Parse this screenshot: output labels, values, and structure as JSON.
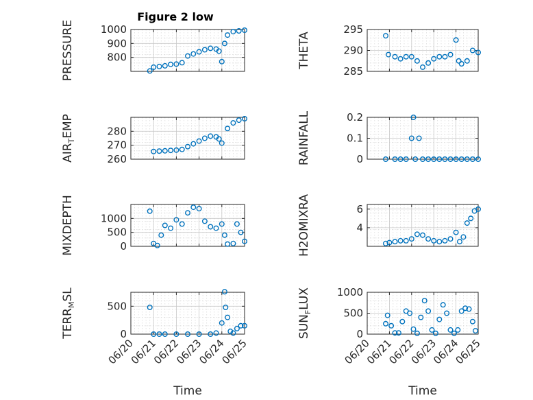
{
  "figure": {
    "title": "Figure 2 low",
    "marker_color": "#0072BD"
  },
  "x_ticks": [
    "06/20",
    "06/21",
    "06/22",
    "06/23",
    "06/24",
    "06/25"
  ],
  "xlabel": "Time",
  "chart_data": [
    {
      "type": "scatter",
      "ylabel_main": "PRESSURE",
      "ylabel_sub": "",
      "ylabel_tail": "",
      "yticks": [
        "1000",
        "900",
        "800"
      ],
      "ytick_values": [
        1000,
        900,
        800
      ],
      "ylim": [
        700,
        1000
      ],
      "x": [
        "06/20 20:00",
        "06/21 00:00",
        "06/21 06:00",
        "06/21 12:00",
        "06/21 18:00",
        "06/22 00:00",
        "06/22 06:00",
        "06/22 12:00",
        "06/22 18:00",
        "06/23 00:00",
        "06/23 06:00",
        "06/23 12:00",
        "06/23 18:00",
        "06/23 21:00",
        "06/24 00:00",
        "06/24 03:00",
        "06/24 06:00",
        "06/24 12:00",
        "06/24 18:00",
        "06/25 00:00"
      ],
      "y": [
        703,
        730,
        735,
        740,
        750,
        752,
        762,
        810,
        825,
        840,
        855,
        865,
        860,
        845,
        770,
        900,
        960,
        985,
        990,
        995
      ]
    },
    {
      "type": "scatter",
      "ylabel_main": "THETA",
      "ylabel_sub": "",
      "ylabel_tail": "",
      "yticks": [
        "295",
        "290",
        "285"
      ],
      "ytick_values": [
        295,
        290,
        285
      ],
      "ylim": [
        285,
        295
      ],
      "x": [
        "06/20 20:00",
        "06/20 23:00",
        "06/21 06:00",
        "06/21 12:00",
        "06/21 18:00",
        "06/22 00:00",
        "06/22 06:00",
        "06/22 12:00",
        "06/22 18:00",
        "06/23 00:00",
        "06/23 06:00",
        "06/23 12:00",
        "06/23 18:00",
        "06/24 00:00",
        "06/24 03:00",
        "06/24 06:00",
        "06/24 12:00",
        "06/24 18:00",
        "06/25 00:00"
      ],
      "y": [
        293.5,
        289,
        288.5,
        288,
        288.5,
        288.5,
        287.5,
        286,
        287,
        288,
        288.5,
        288.5,
        289,
        292.5,
        287.5,
        286.8,
        287.5,
        290,
        289.5
      ]
    },
    {
      "type": "scatter",
      "ylabel_main": "AIR",
      "ylabel_sub": "T",
      "ylabel_tail": "EMP",
      "yticks": [
        "280",
        "270",
        "260"
      ],
      "ytick_values": [
        280,
        270,
        260
      ],
      "ylim": [
        260,
        290
      ],
      "x": [
        "06/21 00:00",
        "06/21 06:00",
        "06/21 12:00",
        "06/21 18:00",
        "06/22 00:00",
        "06/22 06:00",
        "06/22 12:00",
        "06/22 18:00",
        "06/23 00:00",
        "06/23 06:00",
        "06/23 12:00",
        "06/23 18:00",
        "06/23 21:00",
        "06/24 00:00",
        "06/24 06:00",
        "06/24 12:00",
        "06/24 18:00",
        "06/25 00:00"
      ],
      "y": [
        265.5,
        265.8,
        266,
        266.3,
        266.5,
        267,
        269,
        271,
        273,
        275,
        276.5,
        276,
        274.5,
        271.5,
        282,
        286,
        288,
        289
      ]
    },
    {
      "type": "scatter",
      "ylabel_main": "RAINFALL",
      "ylabel_sub": "",
      "ylabel_tail": "",
      "yticks": [
        "0.2",
        "0.1",
        "0"
      ],
      "ytick_values": [
        0.2,
        0.1,
        0
      ],
      "ylim": [
        0,
        0.2
      ],
      "x": [
        "06/20 20:00",
        "06/21 06:00",
        "06/21 12:00",
        "06/21 18:00",
        "06/22 00:00",
        "06/22 02:00",
        "06/22 04:00",
        "06/22 08:00",
        "06/22 12:00",
        "06/22 18:00",
        "06/23 00:00",
        "06/23 06:00",
        "06/23 12:00",
        "06/23 18:00",
        "06/24 00:00",
        "06/24 06:00",
        "06/24 12:00",
        "06/24 18:00",
        "06/25 00:00"
      ],
      "y": [
        0,
        0,
        0,
        0,
        0.1,
        0.2,
        0,
        0.1,
        0,
        0,
        0,
        0,
        0,
        0,
        0,
        0,
        0,
        0,
        0
      ]
    },
    {
      "type": "scatter",
      "ylabel_main": "MIXDEPTH",
      "ylabel_sub": "",
      "ylabel_tail": "",
      "yticks": [
        "1000",
        "500",
        "0"
      ],
      "ytick_values": [
        1000,
        500,
        0
      ],
      "ylim": [
        0,
        1500
      ],
      "x": [
        "06/20 20:00",
        "06/21 00:00",
        "06/21 04:00",
        "06/21 08:00",
        "06/21 12:00",
        "06/21 18:00",
        "06/22 00:00",
        "06/22 06:00",
        "06/22 12:00",
        "06/22 18:00",
        "06/23 00:00",
        "06/23 06:00",
        "06/23 12:00",
        "06/23 18:00",
        "06/24 00:00",
        "06/24 03:00",
        "06/24 06:00",
        "06/24 12:00",
        "06/24 16:00",
        "06/24 20:00",
        "06/25 00:00"
      ],
      "y": [
        1260,
        100,
        30,
        400,
        750,
        650,
        950,
        800,
        1200,
        1400,
        1350,
        900,
        700,
        650,
        800,
        400,
        80,
        100,
        800,
        500,
        180
      ]
    },
    {
      "type": "scatter",
      "ylabel_main": "H2OMIXRA",
      "ylabel_sub": "",
      "ylabel_tail": "",
      "yticks": [
        "6",
        "4"
      ],
      "ytick_values": [
        6,
        4
      ],
      "ylim": [
        2,
        6.5
      ],
      "x": [
        "06/20 20:00",
        "06/21 00:00",
        "06/21 06:00",
        "06/21 12:00",
        "06/21 18:00",
        "06/22 00:00",
        "06/22 06:00",
        "06/22 12:00",
        "06/22 18:00",
        "06/23 00:00",
        "06/23 06:00",
        "06/23 12:00",
        "06/23 18:00",
        "06/24 00:00",
        "06/24 04:00",
        "06/24 08:00",
        "06/24 12:00",
        "06/24 16:00",
        "06/24 20:00",
        "06/25 00:00"
      ],
      "y": [
        2.3,
        2.4,
        2.5,
        2.6,
        2.6,
        2.8,
        3.3,
        3.2,
        2.8,
        2.6,
        2.5,
        2.6,
        2.8,
        3.5,
        2.5,
        3.0,
        4.5,
        5.0,
        5.8,
        6.0
      ]
    },
    {
      "type": "scatter",
      "ylabel_main": "TERR",
      "ylabel_sub": "M",
      "ylabel_tail": "SL",
      "yticks": [
        "500",
        "0"
      ],
      "ytick_values": [
        500,
        0
      ],
      "ylim": [
        0,
        750
      ],
      "x": [
        "06/20 20:00",
        "06/21 00:00",
        "06/21 06:00",
        "06/21 12:00",
        "06/22 00:00",
        "06/22 12:00",
        "06/23 00:00",
        "06/23 12:00",
        "06/23 18:00",
        "06/24 00:00",
        "06/24 03:00",
        "06/24 04:00",
        "06/24 06:00",
        "06/24 09:00",
        "06/24 12:00",
        "06/24 16:00",
        "06/24 20:00",
        "06/25 00:00"
      ],
      "y": [
        480,
        0,
        0,
        0,
        0,
        0,
        0,
        0,
        20,
        200,
        760,
        480,
        300,
        50,
        20,
        100,
        150,
        150
      ]
    },
    {
      "type": "scatter",
      "ylabel_main": "SUN",
      "ylabel_sub": "F",
      "ylabel_tail": "LUX",
      "yticks": [
        "1000",
        "500",
        "0"
      ],
      "ytick_values": [
        1000,
        500,
        0
      ],
      "ylim": [
        0,
        1000
      ],
      "x": [
        "06/20 20:00",
        "06/20 22:00",
        "06/21 02:00",
        "06/21 06:00",
        "06/21 10:00",
        "06/21 14:00",
        "06/21 18:00",
        "06/21 22:00",
        "06/22 02:00",
        "06/22 06:00",
        "06/22 10:00",
        "06/22 14:00",
        "06/22 18:00",
        "06/22 22:00",
        "06/23 02:00",
        "06/23 06:00",
        "06/23 10:00",
        "06/23 14:00",
        "06/23 18:00",
        "06/23 22:00",
        "06/24 02:00",
        "06/24 06:00",
        "06/24 10:00",
        "06/24 14:00",
        "06/24 18:00",
        "06/24 21:00"
      ],
      "y": [
        250,
        450,
        200,
        30,
        30,
        300,
        550,
        500,
        120,
        20,
        400,
        800,
        550,
        100,
        20,
        350,
        700,
        500,
        100,
        20,
        100,
        550,
        620,
        600,
        300,
        80
      ]
    }
  ]
}
